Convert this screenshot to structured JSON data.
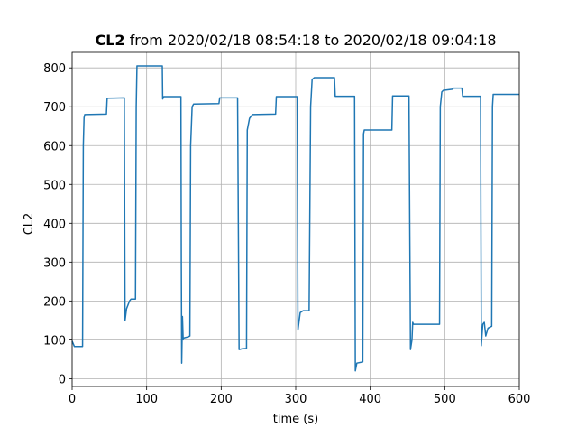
{
  "chart_data": {
    "type": "line",
    "title_bold": "CL2",
    "title": "from 2020/02/18 08:54:18 to 2020/02/18 09:04:18",
    "xlabel": "time (s)",
    "ylabel": "CL2",
    "x": [
      0,
      3,
      13,
      14,
      15,
      16,
      17,
      46,
      47,
      70,
      71,
      73,
      77,
      79,
      83,
      85,
      86,
      87,
      121,
      121.5,
      123,
      146,
      146.5,
      147,
      148,
      149,
      150,
      156,
      158,
      159,
      161,
      163,
      197,
      198,
      222,
      224,
      228,
      234,
      235,
      238,
      242,
      273,
      274,
      302,
      303,
      306,
      310,
      318,
      320,
      322,
      325,
      352,
      353,
      379,
      380,
      382,
      390,
      391,
      392,
      429,
      430,
      452,
      454,
      456,
      457,
      458,
      493,
      494,
      496,
      498,
      510,
      512,
      523,
      524,
      548,
      549,
      551,
      553,
      555,
      558,
      563,
      564,
      565,
      600
    ],
    "series": [
      {
        "name": "CL2",
        "color": "#1f77b4",
        "values": [
          97,
          83,
          83,
          83,
          600,
          672,
          680,
          681,
          722,
          723,
          150,
          180,
          200,
          205,
          205,
          205,
          700,
          805,
          805,
          720,
          726,
          726,
          300,
          40,
          160,
          100,
          105,
          108,
          110,
          600,
          700,
          707,
          708,
          723,
          723,
          75,
          77,
          78,
          640,
          670,
          680,
          681,
          726,
          726,
          125,
          170,
          175,
          175,
          700,
          770,
          775,
          775,
          727,
          727,
          20,
          40,
          43,
          630,
          640,
          640,
          728,
          728,
          75,
          100,
          145,
          140,
          140,
          700,
          738,
          742,
          745,
          748,
          748,
          727,
          727,
          85,
          140,
          145,
          110,
          130,
          135,
          700,
          732,
          732
        ]
      }
    ],
    "xlim": [
      0,
      600
    ],
    "ylim": [
      -20,
      840
    ],
    "xticks": [
      0,
      100,
      200,
      300,
      400,
      500,
      600
    ],
    "yticks": [
      0,
      100,
      200,
      300,
      400,
      500,
      600,
      700,
      800
    ],
    "grid": true
  }
}
